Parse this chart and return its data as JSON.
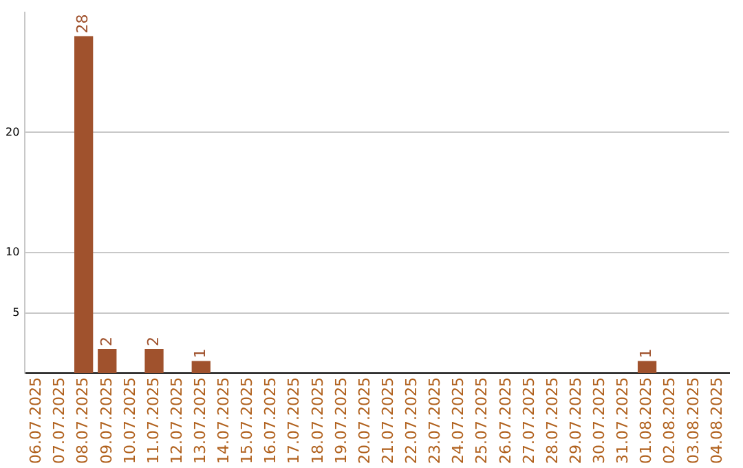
{
  "chart_data": {
    "type": "bar",
    "categories": [
      "06.07.2025",
      "07.07.2025",
      "08.07.2025",
      "09.07.2025",
      "10.07.2025",
      "11.07.2025",
      "12.07.2025",
      "13.07.2025",
      "14.07.2025",
      "15.07.2025",
      "16.07.2025",
      "17.07.2025",
      "18.07.2025",
      "19.07.2025",
      "20.07.2025",
      "21.07.2025",
      "22.07.2025",
      "23.07.2025",
      "24.07.2025",
      "25.07.2025",
      "26.07.2025",
      "27.07.2025",
      "28.07.2025",
      "29.07.2025",
      "30.07.2025",
      "31.07.2025",
      "01.08.2025",
      "02.08.2025",
      "03.08.2025",
      "04.08.2025"
    ],
    "values": [
      null,
      null,
      28,
      2,
      null,
      2,
      null,
      1,
      null,
      null,
      null,
      null,
      null,
      null,
      null,
      null,
      null,
      null,
      null,
      null,
      null,
      null,
      null,
      null,
      null,
      null,
      1,
      null,
      null,
      null
    ],
    "color": "#a0522d",
    "ylim": [
      0,
      30
    ],
    "yticks": [
      5,
      10,
      20
    ],
    "grid": "y",
    "legend": false,
    "data_labels": true
  }
}
